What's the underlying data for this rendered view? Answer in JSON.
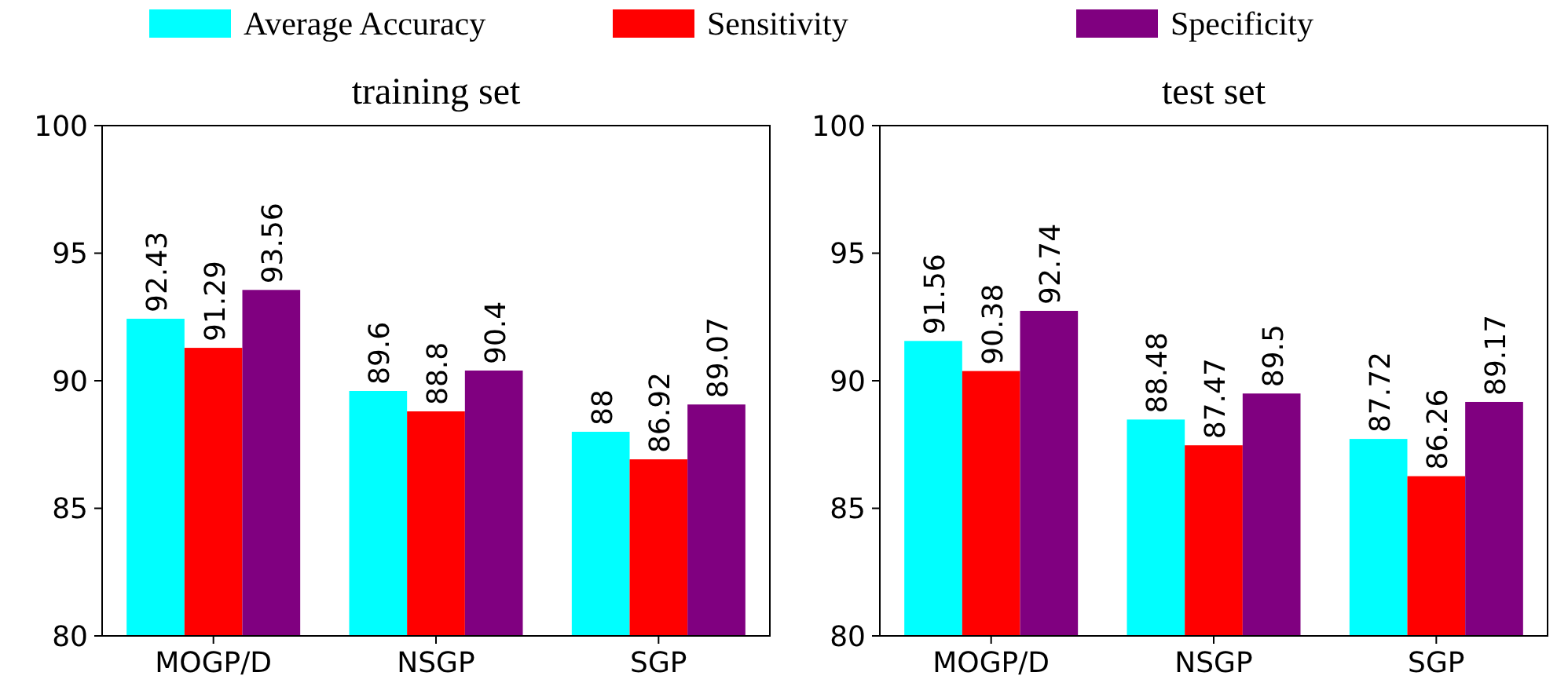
{
  "chart_data": [
    {
      "type": "bar",
      "title": "training set",
      "categories": [
        "MOGP/D",
        "NSGP",
        "SGP"
      ],
      "ylim": [
        80,
        100
      ],
      "yticks": [
        80,
        85,
        90,
        95,
        100
      ],
      "data_labels": true,
      "legend": "top",
      "grid": false,
      "series": [
        {
          "name": "Average Accuracy",
          "color": "#00ffff",
          "values": [
            92.43,
            89.6,
            88
          ]
        },
        {
          "name": "Sensitivity",
          "color": "#ff0000",
          "values": [
            91.29,
            88.8,
            86.92
          ]
        },
        {
          "name": "Specificity",
          "color": "#800080",
          "values": [
            93.56,
            90.4,
            89.07
          ]
        }
      ]
    },
    {
      "type": "bar",
      "title": "test set",
      "categories": [
        "MOGP/D",
        "NSGP",
        "SGP"
      ],
      "ylim": [
        80,
        100
      ],
      "yticks": [
        80,
        85,
        90,
        95,
        100
      ],
      "data_labels": true,
      "grid": false,
      "series": [
        {
          "color": "#00ffff",
          "values": [
            91.56,
            88.48,
            87.72
          ]
        },
        {
          "color": "#ff0000",
          "values": [
            90.38,
            87.47,
            86.26
          ]
        },
        {
          "color": "#800080",
          "values": [
            92.74,
            89.5,
            89.17
          ]
        }
      ]
    }
  ]
}
